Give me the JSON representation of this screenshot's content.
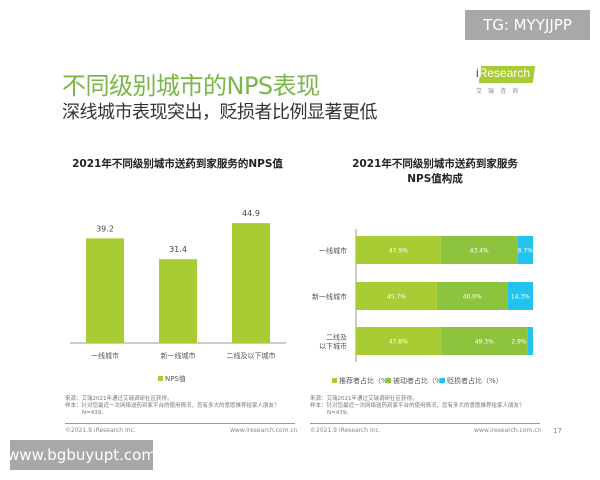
{
  "header": {
    "title": "不同级别城市的NPS表现",
    "subtitle": "深线城市表现突出，贬损者比例显著更低",
    "logo_text": "iResearch",
    "logo_sub": "艾瑞咨询"
  },
  "watermarks": {
    "top": "TG: MYYJJPP",
    "bottom": "www.bgbuyupt.com"
  },
  "colors": {
    "title_green": "#7ab648",
    "promoter": "#a9cc35",
    "passive": "#8ec33e",
    "detractor": "#22c4ef"
  },
  "chart_data": [
    {
      "type": "bar",
      "title": "2021年不同级别城市送药到家服务的NPS值",
      "categories": [
        "一线城市",
        "新一线城市",
        "二线及以下城市"
      ],
      "series": [
        {
          "name": "NPS值",
          "values": [
            39.2,
            31.4,
            44.9
          ]
        }
      ],
      "value_labels": [
        "39.2",
        "31.4",
        "44.9"
      ],
      "legend": "bottom",
      "grid": false
    },
    {
      "type": "bar",
      "orientation": "horizontal-stacked-100",
      "title_lines": [
        "2021年不同级别城市送药到家服务",
        "NPS值构成"
      ],
      "categories": [
        "一线城市",
        "新一线城市",
        "二线及\n以下城市"
      ],
      "category_lines": [
        [
          "一线城市"
        ],
        [
          "新一线城市"
        ],
        [
          "二线及",
          "以下城市"
        ]
      ],
      "series": [
        {
          "name": "推荐者占比（%）",
          "values": [
            47.9,
            45.7,
            47.8
          ],
          "labels": [
            "47.9%",
            "45.7%",
            "47.8%"
          ]
        },
        {
          "name": "被动者占比（%）",
          "values": [
            43.4,
            40.0,
            49.3
          ],
          "labels": [
            "43.4%",
            "40.0%",
            "49.3%"
          ]
        },
        {
          "name": "贬损者占比（%）",
          "values": [
            8.7,
            14.3,
            2.9
          ],
          "labels": [
            "8.7%",
            "14.3%",
            "2.9%"
          ]
        }
      ],
      "legend": "bottom",
      "grid": false
    }
  ],
  "footer": {
    "left": {
      "source": "来源：艾瑞2021年通过艾瑞调研社区获得。",
      "sample": "样本：针对您最近一次网络送药到家平台的使用情况，您有多大的意愿推荐给家人朋友？",
      "n": "N=439。",
      "copyright": "©2021.9 iResearch Inc.",
      "url": "www.iresearch.com.cn"
    },
    "right": {
      "source": "来源：艾瑞2021年通过艾瑞调研社区获得。",
      "sample": "样本：针对您最近一次网络送药到家平台的使用情况，您有多大的意愿推荐给家人朋友？",
      "n": "N=439。",
      "copyright": "©2021.9 iResearch Inc.",
      "url": "www.iresearch.com.cn"
    },
    "page_number": "17"
  }
}
